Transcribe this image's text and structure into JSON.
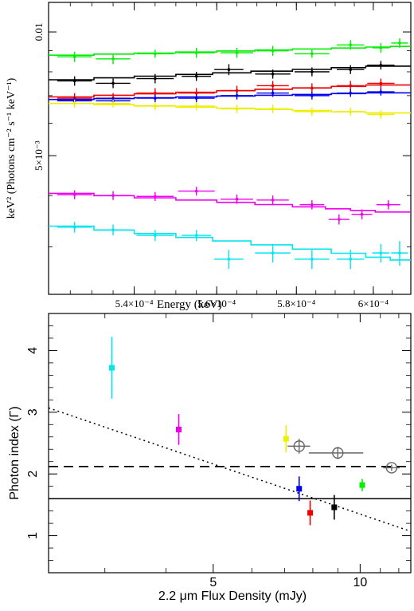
{
  "chart_data": [
    {
      "type": "line",
      "xlabel": "Energy (keV)",
      "ylabel": "keV² (Photons cm⁻² s⁻¹ keV⁻¹)",
      "xlim": [
        0.00052,
        0.00061
      ],
      "ylim_log": [
        0.0023,
        0.0118
      ],
      "y_scale": "log",
      "x_ticks": [
        {
          "v": 0.00054,
          "label": "5.4×10⁻⁴"
        },
        {
          "v": 0.00056,
          "label": "5.6×10⁻⁴"
        },
        {
          "v": 0.00058,
          "label": "5.8×10⁻⁴"
        },
        {
          "v": 0.0006,
          "label": "6×10⁻⁴"
        }
      ],
      "y_ticks": [
        {
          "v": 0.01,
          "label": "0.01"
        },
        {
          "v": 0.005,
          "label": "5×10⁻³"
        }
      ],
      "series": [
        {
          "color": "#00ee00",
          "model": [
            0.00878,
            0.00925
          ],
          "points": [
            [
              0.000526,
              0.0087,
              0.00025
            ],
            [
              0.000535,
              0.0086,
              0.00025
            ],
            [
              0.000545,
              0.00885,
              0.0002
            ],
            [
              0.000555,
              0.0089,
              0.00025
            ],
            [
              0.000565,
              0.0089,
              0.00025
            ],
            [
              0.000574,
              0.009,
              0.00025
            ],
            [
              0.000584,
              0.00885,
              0.0002
            ],
            [
              0.000594,
              0.0093,
              0.00025
            ],
            [
              0.000602,
              0.00915,
              0.00025
            ],
            [
              0.000607,
              0.0094,
              0.00025
            ]
          ]
        },
        {
          "color": "#000000",
          "model": [
            0.00765,
            0.00835
          ],
          "points": [
            [
              0.000526,
              0.0076,
              0.0002
            ],
            [
              0.000535,
              0.0075,
              0.0002
            ],
            [
              0.000545,
              0.0077,
              0.0002
            ],
            [
              0.000555,
              0.0078,
              0.0002
            ],
            [
              0.000563,
              0.0081,
              0.00025
            ],
            [
              0.000574,
              0.0079,
              0.0002
            ],
            [
              0.000584,
              0.008,
              0.0002
            ],
            [
              0.000594,
              0.0081,
              0.0002
            ],
            [
              0.000602,
              0.0083,
              0.0002
            ]
          ]
        },
        {
          "color": "#ee0000",
          "model": [
            0.00695,
            0.0075
          ],
          "points": [
            [
              0.000526,
              0.0069,
              0.0002
            ],
            [
              0.000535,
              0.0069,
              0.0002
            ],
            [
              0.000545,
              0.0071,
              0.0002
            ],
            [
              0.000555,
              0.0071,
              0.0002
            ],
            [
              0.000565,
              0.0072,
              0.0002
            ],
            [
              0.000574,
              0.0074,
              0.0002
            ],
            [
              0.000584,
              0.0073,
              0.0002
            ],
            [
              0.000594,
              0.0074,
              0.0002
            ],
            [
              0.000602,
              0.0075,
              0.0002
            ]
          ]
        },
        {
          "color": "#0000ee",
          "model": [
            0.00685,
            0.00715
          ],
          "points": [
            [
              0.000526,
              0.0068,
              0.00015
            ],
            [
              0.000535,
              0.0068,
              0.00015
            ],
            [
              0.000545,
              0.0069,
              0.00015
            ],
            [
              0.000555,
              0.0069,
              0.00015
            ],
            [
              0.000565,
              0.007,
              0.00015
            ],
            [
              0.000574,
              0.0071,
              0.00015
            ],
            [
              0.000584,
              0.007,
              0.00015
            ],
            [
              0.000594,
              0.0071,
              0.00015
            ],
            [
              0.000602,
              0.00715,
              0.00015
            ]
          ]
        },
        {
          "color": "#eeee00",
          "model": [
            0.0067,
            0.0063
          ],
          "points": [
            [
              0.000526,
              0.0067,
              0.00015
            ],
            [
              0.000535,
              0.0067,
              0.00015
            ],
            [
              0.000545,
              0.0066,
              0.00015
            ],
            [
              0.000555,
              0.0066,
              0.00015
            ],
            [
              0.000565,
              0.0065,
              0.00015
            ],
            [
              0.000574,
              0.0065,
              0.00015
            ],
            [
              0.000584,
              0.0064,
              0.00015
            ],
            [
              0.000594,
              0.0064,
              0.00015
            ],
            [
              0.000602,
              0.0063,
              0.00015
            ]
          ]
        },
        {
          "color": "#ee00ee",
          "model": [
            0.00405,
            0.0036
          ],
          "points": [
            [
              0.000526,
              0.00402,
              0.0001
            ],
            [
              0.000535,
              0.004,
              0.0001
            ],
            [
              0.000545,
              0.00398,
              0.0001
            ],
            [
              0.000555,
              0.0041,
              0.0001
            ],
            [
              0.000565,
              0.00392,
              0.0001
            ],
            [
              0.000574,
              0.0039,
              0.0001
            ],
            [
              0.000584,
              0.0038,
              0.0001
            ],
            [
              0.000591,
              0.0035,
              0.0001
            ],
            [
              0.000597,
              0.0036,
              0.0001
            ],
            [
              0.000604,
              0.0038,
              0.0001
            ]
          ]
        },
        {
          "color": "#00e5ee",
          "model": [
            0.00337,
            0.00275
          ],
          "points": [
            [
              0.000526,
              0.00335,
              0.0001
            ],
            [
              0.000535,
              0.0033,
              0.0001
            ],
            [
              0.000545,
              0.0032,
              0.0001
            ],
            [
              0.000555,
              0.0032,
              0.0001
            ],
            [
              0.000563,
              0.0028,
              0.00015
            ],
            [
              0.000574,
              0.0029,
              0.00015
            ],
            [
              0.000584,
              0.0028,
              0.00015
            ],
            [
              0.000594,
              0.0028,
              0.00015
            ],
            [
              0.000602,
              0.0029,
              0.00015
            ],
            [
              0.000607,
              0.0029,
              0.0002
            ]
          ]
        }
      ]
    },
    {
      "type": "scatter",
      "xlabel": "2.2 μm Flux Density (mJy)",
      "ylabel": "Photon index (Γ)",
      "xlim": [
        2.3,
        12.7
      ],
      "ylim": [
        0.4,
        4.6
      ],
      "x_ticks": [
        {
          "v": 5,
          "label": "5"
        },
        {
          "v": 10,
          "label": "10"
        }
      ],
      "y_ticks": [
        {
          "v": 1,
          "label": "1"
        },
        {
          "v": 2,
          "label": "2"
        },
        {
          "v": 3,
          "label": "3"
        },
        {
          "v": 4,
          "label": "4"
        }
      ],
      "points": [
        {
          "x": 3.1,
          "y": 3.72,
          "yerr": 0.5,
          "color": "#00e5ee"
        },
        {
          "x": 4.25,
          "y": 2.72,
          "yerr": 0.25,
          "color": "#ee00ee"
        },
        {
          "x": 7.05,
          "y": 2.57,
          "yerr": 0.22,
          "color": "#eeee00"
        },
        {
          "x": 7.5,
          "y": 1.76,
          "yerr": 0.2,
          "color": "#0000ee"
        },
        {
          "x": 7.9,
          "y": 1.37,
          "yerr": 0.2,
          "color": "#ee0000"
        },
        {
          "x": 8.85,
          "y": 1.46,
          "yerr": 0.2,
          "color": "#000000"
        },
        {
          "x": 10.1,
          "y": 1.82,
          "yerr": 0.1,
          "color": "#00ee00"
        }
      ],
      "open_points": [
        {
          "x": 7.5,
          "y": 2.45,
          "xerr": 0.4,
          "yerr": 0.12
        },
        {
          "x": 9.0,
          "y": 2.34,
          "xerr": 1.15,
          "yerr": 0.1
        },
        {
          "x": 11.6,
          "y": 2.1,
          "xerr": 0.45,
          "yerr": 0.05
        }
      ],
      "lines": [
        {
          "style": "dotted",
          "from": [
            2.3,
            3.07
          ],
          "to": [
            12.7,
            1.07
          ]
        },
        {
          "style": "dashed",
          "from": [
            2.3,
            2.12
          ],
          "to": [
            12.7,
            2.12
          ]
        },
        {
          "style": "solid",
          "from": [
            2.3,
            1.6
          ],
          "to": [
            12.7,
            1.6
          ]
        }
      ]
    }
  ]
}
